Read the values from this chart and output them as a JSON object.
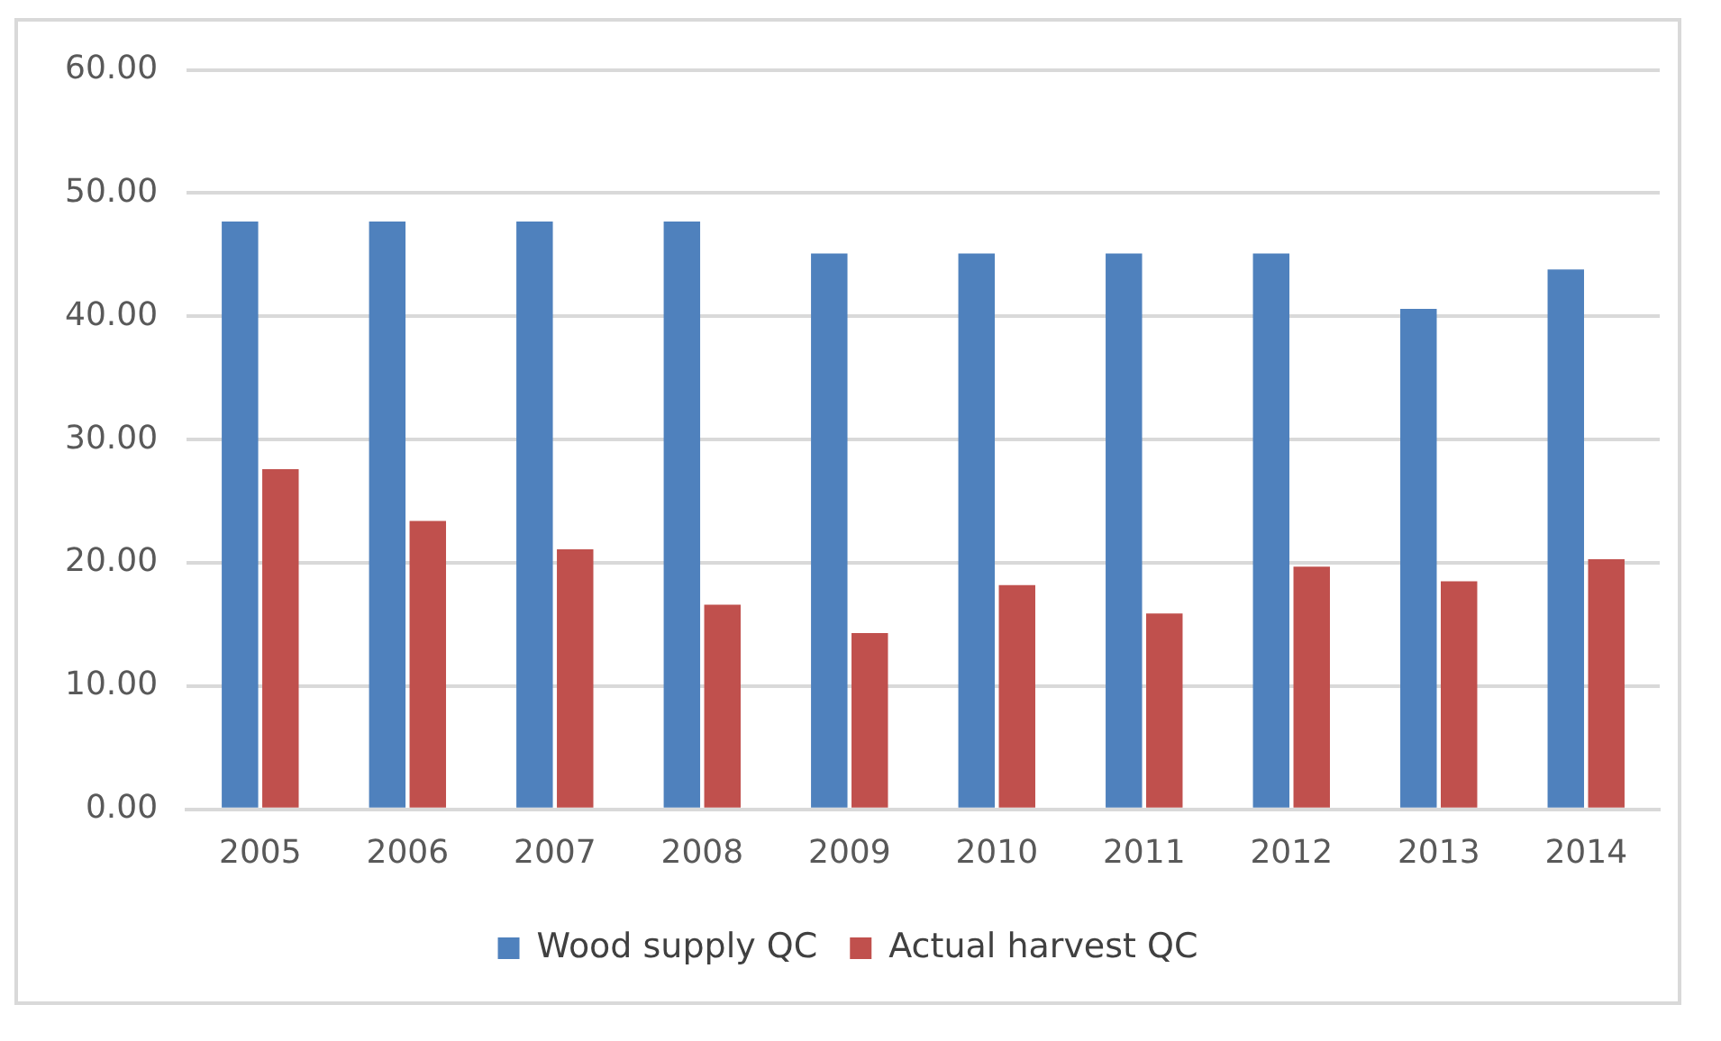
{
  "chart_data": {
    "type": "bar",
    "categories": [
      "2005",
      "2006",
      "2007",
      "2008",
      "2009",
      "2010",
      "2011",
      "2012",
      "2013",
      "2014"
    ],
    "series": [
      {
        "name": "Wood supply QC",
        "color": "#4f81bd",
        "values": [
          47.7,
          47.7,
          47.7,
          47.7,
          45.1,
          45.1,
          45.1,
          45.1,
          40.6,
          43.8
        ]
      },
      {
        "name": "Actual harvest QC",
        "color": "#c0504d",
        "values": [
          27.6,
          23.4,
          21.1,
          16.6,
          14.3,
          18.2,
          15.9,
          19.7,
          18.5,
          20.3
        ]
      }
    ],
    "ylim": [
      0,
      60
    ],
    "yticks": [
      {
        "value": 0,
        "label": "0.00"
      },
      {
        "value": 10,
        "label": "10.00"
      },
      {
        "value": 20,
        "label": "20.00"
      },
      {
        "value": 30,
        "label": "30.00"
      },
      {
        "value": 40,
        "label": "40.00"
      },
      {
        "value": 50,
        "label": "50.00"
      },
      {
        "value": 60,
        "label": "60.00"
      }
    ],
    "grid": "y",
    "legend": "bottom"
  }
}
